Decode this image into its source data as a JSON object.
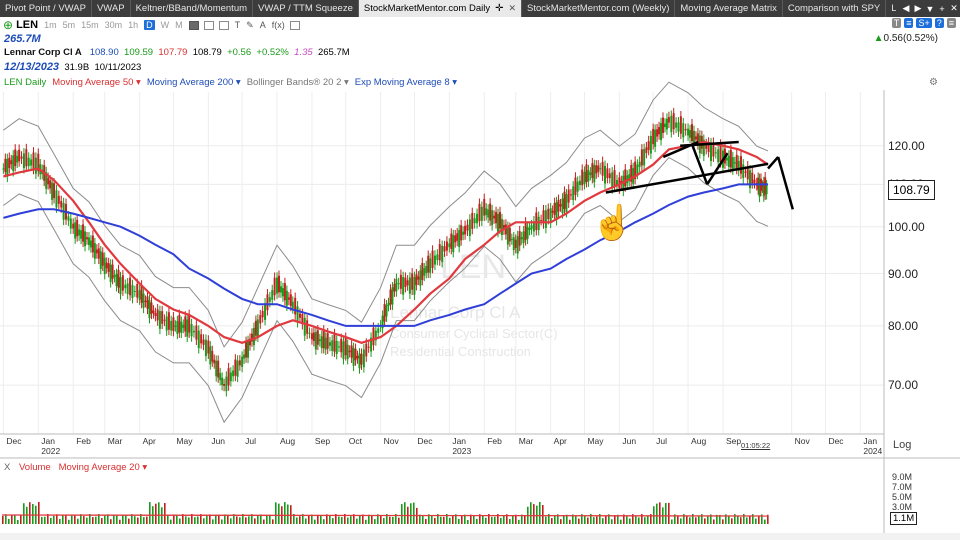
{
  "tabs": [
    {
      "label": "Pivot Point / VWAP",
      "active": false
    },
    {
      "label": "VWAP",
      "active": false
    },
    {
      "label": "Keltner/BBand/Momentum",
      "active": false
    },
    {
      "label": "VWAP / TTM Squeeze",
      "active": false
    },
    {
      "label": "StockMarketMentor.com Daily",
      "active": true
    },
    {
      "label": "StockMarketMentor.com (Weekly)",
      "active": false
    },
    {
      "label": "Moving Average Matrix",
      "active": false
    },
    {
      "label": "Comparison with SPY",
      "active": false
    },
    {
      "label": "Lir",
      "active": false
    }
  ],
  "tab_controls": [
    "◀",
    "▶",
    "▼",
    "+",
    "✕"
  ],
  "toolbar": {
    "symbol": "LEN",
    "intervals": [
      "1m",
      "5m",
      "15m",
      "30m",
      "1h",
      "D",
      "W",
      "M"
    ],
    "active_interval": "D",
    "tools": [
      "T",
      "✎",
      "A",
      "f(x)"
    ],
    "right_tools": [
      {
        "label": "T",
        "color": "#888888"
      },
      {
        "label": "≡",
        "color": "#1e6fd9"
      },
      {
        "label": "S+",
        "color": "#1e6fd9"
      },
      {
        "label": "?",
        "color": "#1e6fd9"
      },
      {
        "label": "≡",
        "color": "#888888"
      }
    ]
  },
  "header": {
    "volume_big": "265.7M",
    "change_arrow": "▲",
    "change": "0.56(0.52%)",
    "company": "Lennar Corp Cl A",
    "open": "108.90",
    "high": "109.59",
    "low": "107.79",
    "close": "108.79",
    "change_abs": "+0.56",
    "change_pct": "+0.52%",
    "beta": "1.35",
    "volume": "265.7M",
    "date": "12/13/2023",
    "shares": "31.9B",
    "earnings_date": "10/11/2023"
  },
  "legend": [
    {
      "label": "LEN Daily",
      "color": "#1a9a1a"
    },
    {
      "label": "Moving Average 50 ▾",
      "color": "#d93030"
    },
    {
      "label": "Moving Average 200 ▾",
      "color": "#1e4db7"
    },
    {
      "label": "Bollinger Bands® 20 2 ▾",
      "color": "#777777"
    },
    {
      "label": "Exp Moving Average 8 ▾",
      "color": "#1e4db7"
    }
  ],
  "gear_icon": "⚙",
  "price_axis": [
    "120.00",
    "110.00",
    "100.00",
    "90.00",
    "80.00",
    "70.00"
  ],
  "last_price": "108.79",
  "time_axis": {
    "months": [
      "Dec",
      "Jan",
      "Feb",
      "Mar",
      "Apr",
      "May",
      "Jun",
      "Jul",
      "Aug",
      "Sep",
      "Oct",
      "Nov",
      "Dec",
      "Jan",
      "Feb",
      "Mar",
      "Apr",
      "May",
      "Jun",
      "Jul",
      "Aug",
      "Sep",
      "Nov",
      "Dec",
      "Jan"
    ],
    "years": [
      "2022",
      "2023",
      "2024"
    ],
    "clock": "01:05:22",
    "scale": "Log"
  },
  "watermark": {
    "symbol": "LEN",
    "name": "Lennar Corp Cl A",
    "sector": "Consumer Cyclical Sector(C)",
    "industry": "Residential Construction"
  },
  "volume": {
    "close_icon": "X",
    "label": "Volume",
    "ma_label": "Moving Average 20 ▾",
    "ticks": [
      "9.0M",
      "7.0M",
      "5.0M",
      "3.0M"
    ],
    "last": "1.1M"
  },
  "colors": {
    "ma50": "#e0393e",
    "ma200": "#2f3fd8",
    "bollinger": "#8c8c8c",
    "candle_up": "#1a9a1a",
    "candle_down": "#c21f1f",
    "tab_bg": "#3c3c3c",
    "accent_blue": "#1e4db7"
  },
  "chart_data": {
    "type": "line",
    "title": "LEN Daily",
    "xlabel": "",
    "ylabel": "",
    "scale": "log",
    "ylim": [
      63,
      133
    ],
    "x": [
      "2021-12-01",
      "2021-12-15",
      "2022-01-01",
      "2022-01-15",
      "2022-02-01",
      "2022-02-15",
      "2022-03-01",
      "2022-03-15",
      "2022-04-01",
      "2022-04-15",
      "2022-05-01",
      "2022-05-15",
      "2022-06-01",
      "2022-06-15",
      "2022-07-01",
      "2022-07-15",
      "2022-08-01",
      "2022-08-15",
      "2022-09-01",
      "2022-09-15",
      "2022-10-01",
      "2022-10-15",
      "2022-11-01",
      "2022-11-15",
      "2022-12-01",
      "2022-12-15",
      "2023-01-01",
      "2023-01-15",
      "2023-02-01",
      "2023-02-15",
      "2023-03-01",
      "2023-03-15",
      "2023-04-01",
      "2023-04-15",
      "2023-05-01",
      "2023-05-15",
      "2023-06-01",
      "2023-06-15",
      "2023-07-01",
      "2023-07-15",
      "2023-08-01",
      "2023-08-15",
      "2023-09-01",
      "2023-09-15",
      "2023-10-01",
      "2023-10-11"
    ],
    "series": [
      {
        "name": "LEN Daily",
        "values": [
          114,
          117,
          115,
          108,
          100,
          97,
          92,
          88,
          86,
          82,
          80,
          80,
          76,
          70,
          74,
          80,
          88,
          84,
          78,
          77,
          76,
          74,
          80,
          88,
          88,
          92,
          96,
          99,
          104,
          101,
          96,
          100,
          103,
          106,
          112,
          114,
          110,
          113,
          122,
          127,
          124,
          120,
          117,
          115,
          110,
          108.8
        ]
      },
      {
        "name": "Moving Average 50",
        "values": [
          112,
          113,
          114,
          111,
          106,
          101,
          96,
          92,
          88,
          85,
          83,
          82,
          80,
          78,
          77,
          78,
          80,
          81,
          80,
          79,
          78,
          77,
          78,
          80,
          83,
          86,
          89,
          93,
          96,
          99,
          101,
          101,
          101,
          103,
          106,
          108,
          110,
          112,
          115,
          119,
          120,
          121,
          120,
          119,
          117,
          115
        ]
      },
      {
        "name": "Moving Average 200",
        "values": [
          102,
          103,
          104,
          104,
          103,
          102,
          101,
          100,
          98,
          96,
          94,
          91,
          89,
          87,
          85,
          84,
          84,
          83,
          82,
          81,
          80,
          80,
          80,
          80,
          80,
          81,
          82,
          83,
          84,
          86,
          88,
          90,
          91,
          93,
          95,
          97,
          99,
          101,
          103,
          105,
          107,
          108,
          109,
          110,
          110,
          110
        ]
      }
    ],
    "annotations": {
      "arrow_target_date": "2023-05-20"
    },
    "grid": true,
    "legend": "top-left"
  }
}
